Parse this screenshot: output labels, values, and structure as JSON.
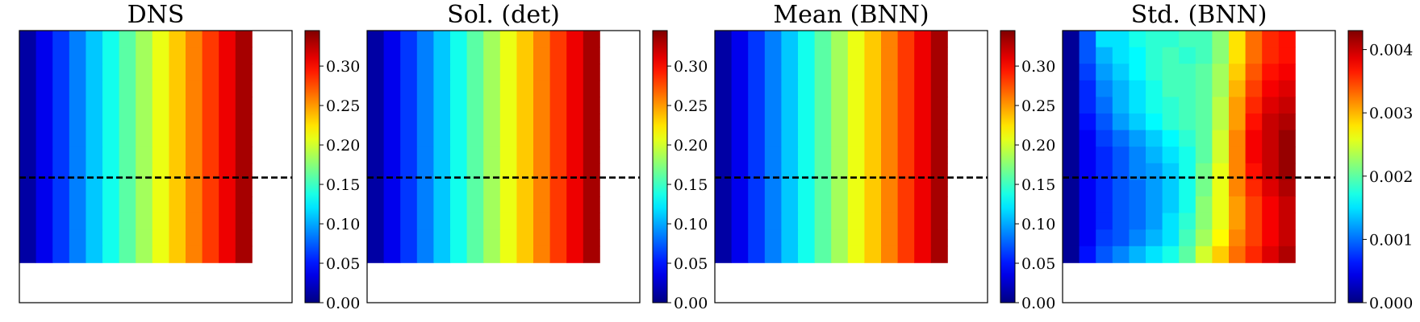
{
  "figure": {
    "panels": [
      {
        "title": "DNS",
        "cbar_ticks": [
          "0.00",
          "0.05",
          "0.10",
          "0.15",
          "0.20",
          "0.25",
          "0.30"
        ]
      },
      {
        "title": "Sol. (det)",
        "cbar_ticks": [
          "0.00",
          "0.05",
          "0.10",
          "0.15",
          "0.20",
          "0.25",
          "0.30"
        ]
      },
      {
        "title": "Mean (BNN)",
        "cbar_ticks": [
          "0.00",
          "0.05",
          "0.10",
          "0.15",
          "0.20",
          "0.25",
          "0.30"
        ]
      },
      {
        "title": "Std. (BNN)",
        "cbar_ticks": [
          "0.000",
          "0.001",
          "0.002",
          "0.003",
          "0.004"
        ]
      }
    ]
  },
  "chart_data": [
    {
      "type": "heatmap",
      "title": "DNS",
      "colormap": "jet",
      "grid": {
        "rows": 14,
        "cols": 14,
        "filled_cols": 14
      },
      "column_values": [
        0.0123,
        0.0369,
        0.0615,
        0.0861,
        0.1107,
        0.1353,
        0.1599,
        0.1845,
        0.2091,
        0.2337,
        0.2583,
        0.2829,
        0.3075,
        0.3321
      ],
      "colorbar": {
        "min": 0.0,
        "max": 0.345,
        "ticks": [
          0.0,
          0.05,
          0.1,
          0.15,
          0.2,
          0.25,
          0.3
        ]
      },
      "dashed_line": {
        "row_fraction": 0.54
      }
    },
    {
      "type": "heatmap",
      "title": "Sol. (det)",
      "colormap": "jet",
      "grid": {
        "rows": 14,
        "cols": 14,
        "filled_cols": 14
      },
      "column_values": [
        0.0123,
        0.0369,
        0.0615,
        0.0861,
        0.1107,
        0.1353,
        0.1599,
        0.1845,
        0.2091,
        0.2337,
        0.2583,
        0.2829,
        0.3075,
        0.3321
      ],
      "colorbar": {
        "min": 0.0,
        "max": 0.345,
        "ticks": [
          0.0,
          0.05,
          0.1,
          0.15,
          0.2,
          0.25,
          0.3
        ]
      },
      "dashed_line": {
        "row_fraction": 0.54
      }
    },
    {
      "type": "heatmap",
      "title": "Mean (BNN)",
      "colormap": "jet",
      "grid": {
        "rows": 14,
        "cols": 14,
        "filled_cols": 14
      },
      "column_values": [
        0.0123,
        0.0369,
        0.0615,
        0.0861,
        0.1107,
        0.1353,
        0.1599,
        0.1845,
        0.2091,
        0.2337,
        0.2583,
        0.2829,
        0.3075,
        0.3321
      ],
      "colorbar": {
        "min": 0.0,
        "max": 0.345,
        "ticks": [
          0.0,
          0.05,
          0.1,
          0.15,
          0.2,
          0.25,
          0.3
        ]
      },
      "dashed_line": {
        "row_fraction": 0.54
      }
    },
    {
      "type": "heatmap",
      "title": "Std. (BNN)",
      "colormap": "jet",
      "grid": {
        "rows": 14,
        "cols": 14,
        "filled_cols": 14
      },
      "values": [
        [
          0.0001,
          0.0009,
          0.0015,
          0.0015,
          0.0017,
          0.0018,
          0.0018,
          0.0019,
          0.0019,
          0.0022,
          0.0028,
          0.0033,
          0.0036,
          0.0037
        ],
        [
          0.0001,
          0.0009,
          0.0013,
          0.0015,
          0.0016,
          0.0018,
          0.0019,
          0.0018,
          0.0019,
          0.0022,
          0.0028,
          0.0033,
          0.0036,
          0.0037
        ],
        [
          0.0001,
          0.0008,
          0.0012,
          0.0014,
          0.0016,
          0.0018,
          0.0019,
          0.0019,
          0.002,
          0.0023,
          0.0029,
          0.0034,
          0.0037,
          0.0038
        ],
        [
          0.0001,
          0.0007,
          0.0011,
          0.0013,
          0.0015,
          0.0017,
          0.0019,
          0.0019,
          0.002,
          0.0023,
          0.003,
          0.0035,
          0.0038,
          0.0039
        ],
        [
          0.0001,
          0.0007,
          0.001,
          0.0013,
          0.0015,
          0.0017,
          0.0018,
          0.0019,
          0.002,
          0.0024,
          0.0031,
          0.0036,
          0.0039,
          0.004
        ],
        [
          0.0001,
          0.0006,
          0.0009,
          0.0012,
          0.0014,
          0.0016,
          0.0018,
          0.0019,
          0.002,
          0.0024,
          0.0031,
          0.0037,
          0.004,
          0.0041
        ],
        [
          0.0001,
          0.0005,
          0.0008,
          0.001,
          0.0012,
          0.0014,
          0.0016,
          0.0018,
          0.002,
          0.0025,
          0.0032,
          0.0038,
          0.004,
          0.0042
        ],
        [
          0.0001,
          0.0005,
          0.0007,
          0.0009,
          0.0011,
          0.0013,
          0.0015,
          0.0017,
          0.002,
          0.0025,
          0.0032,
          0.0038,
          0.004,
          0.0042
        ],
        [
          0.0001,
          0.0005,
          0.0007,
          0.0009,
          0.0011,
          0.0012,
          0.0014,
          0.0017,
          0.0021,
          0.0026,
          0.0032,
          0.0037,
          0.004,
          0.0042
        ],
        [
          0.0001,
          0.0005,
          0.0007,
          0.0009,
          0.001,
          0.0012,
          0.0014,
          0.0017,
          0.0021,
          0.0026,
          0.0032,
          0.0036,
          0.0039,
          0.0041
        ],
        [
          0.0001,
          0.0005,
          0.0007,
          0.0009,
          0.001,
          0.0012,
          0.0014,
          0.0017,
          0.0022,
          0.0026,
          0.0031,
          0.0035,
          0.0038,
          0.004
        ],
        [
          0.0001,
          0.0005,
          0.0007,
          0.0009,
          0.001,
          0.0012,
          0.0015,
          0.0018,
          0.0022,
          0.0026,
          0.0031,
          0.0035,
          0.0038,
          0.004
        ],
        [
          0.0001,
          0.0005,
          0.0008,
          0.0009,
          0.0011,
          0.0013,
          0.0015,
          0.0019,
          0.0023,
          0.0027,
          0.0032,
          0.0035,
          0.0038,
          0.004
        ],
        [
          0.0001,
          0.0006,
          0.0009,
          0.0011,
          0.0013,
          0.0015,
          0.0017,
          0.002,
          0.0025,
          0.0029,
          0.0033,
          0.0036,
          0.0039,
          0.0041
        ]
      ],
      "colorbar": {
        "min": 0.0,
        "max": 0.0043,
        "ticks": [
          0.0,
          0.001,
          0.002,
          0.003,
          0.004
        ]
      },
      "dashed_line": {
        "row_fraction": 0.54
      }
    }
  ]
}
